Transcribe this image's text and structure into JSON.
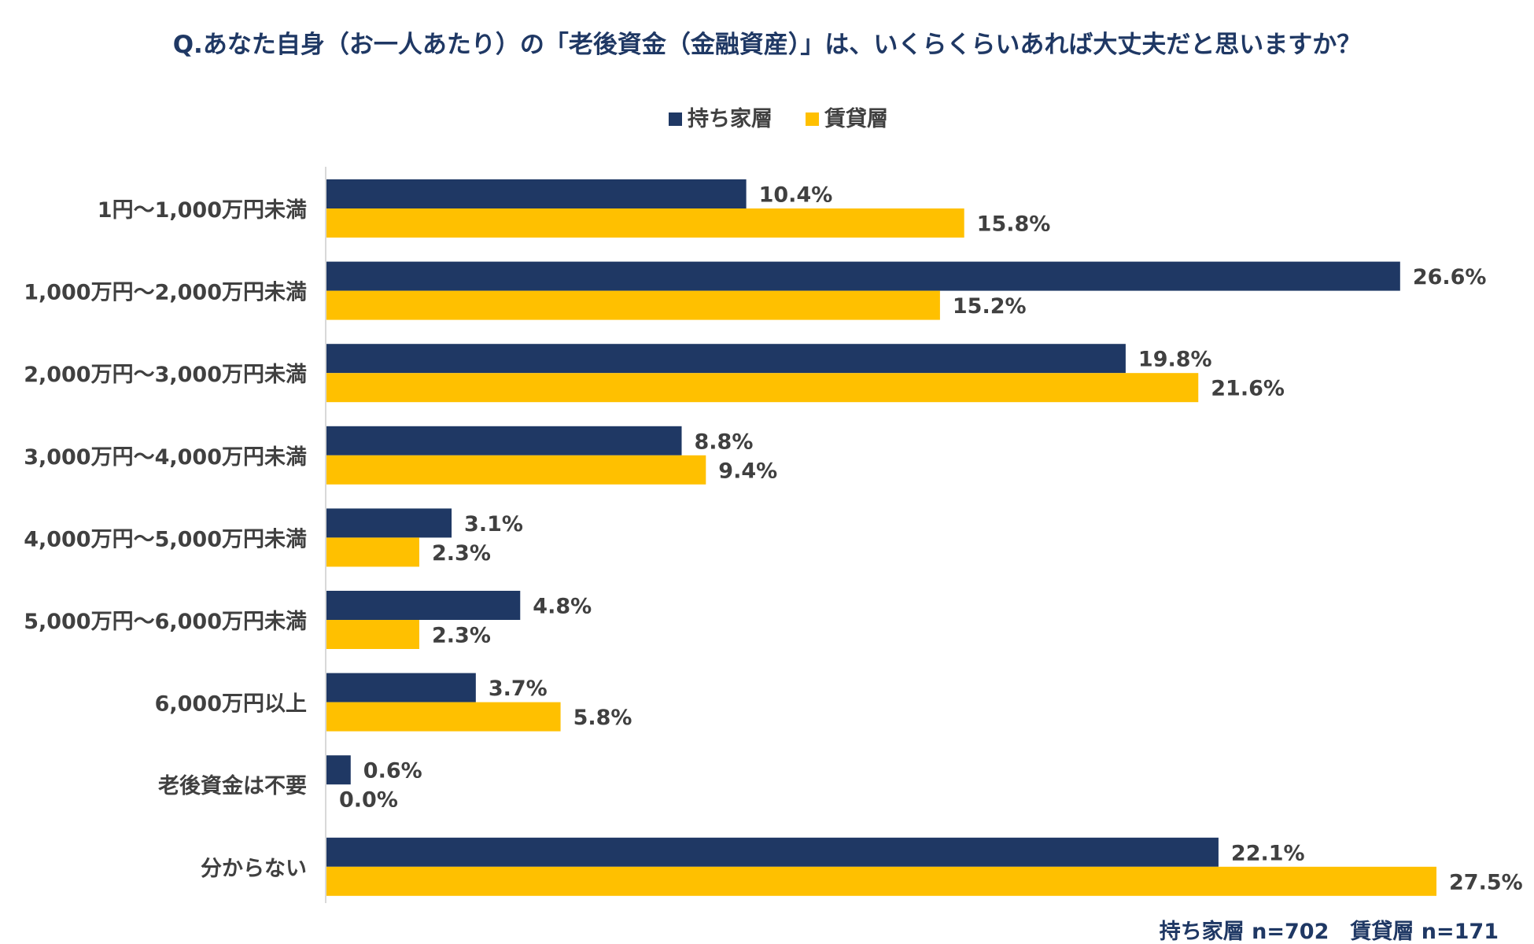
{
  "chart_data": {
    "type": "bar",
    "orientation": "horizontal",
    "title": "Q.あなた自身（お一人あたり）の「老後資金（金融資産）」は、いくらくらいあれば大丈夫だと思いますか？",
    "categories": [
      "1円～1,000万円未満",
      "1,000万円～2,000万円未満",
      "2,000万円～3,000万円未満",
      "3,000万円～4,000万円未満",
      "4,000万円～5,000万円未満",
      "5,000万円～6,000万円未満",
      "6,000万円以上",
      "老後資金は不要",
      "分からない"
    ],
    "series": [
      {
        "name": "持ち家層",
        "color": "#1f3864",
        "values": [
          10.4,
          26.6,
          19.8,
          8.8,
          3.1,
          4.8,
          3.7,
          0.6,
          22.1
        ],
        "labels": [
          "10.4%",
          "26.6%",
          "19.8%",
          "8.8%",
          "3.1%",
          "4.8%",
          "3.7%",
          "0.6%",
          "22.1%"
        ]
      },
      {
        "name": "賃貸層",
        "color": "#ffc000",
        "values": [
          15.8,
          15.2,
          21.6,
          9.4,
          2.3,
          2.3,
          5.8,
          0.0,
          27.5
        ],
        "labels": [
          "15.8%",
          "15.2%",
          "21.6%",
          "9.4%",
          "2.3%",
          "2.3%",
          "5.8%",
          "0.0%",
          "27.5%"
        ]
      }
    ],
    "xlim": [
      0,
      27.5
    ],
    "grid": false,
    "legend_position": "top-center",
    "note": "持ち家層 n=702　賃貸層 n=171"
  }
}
